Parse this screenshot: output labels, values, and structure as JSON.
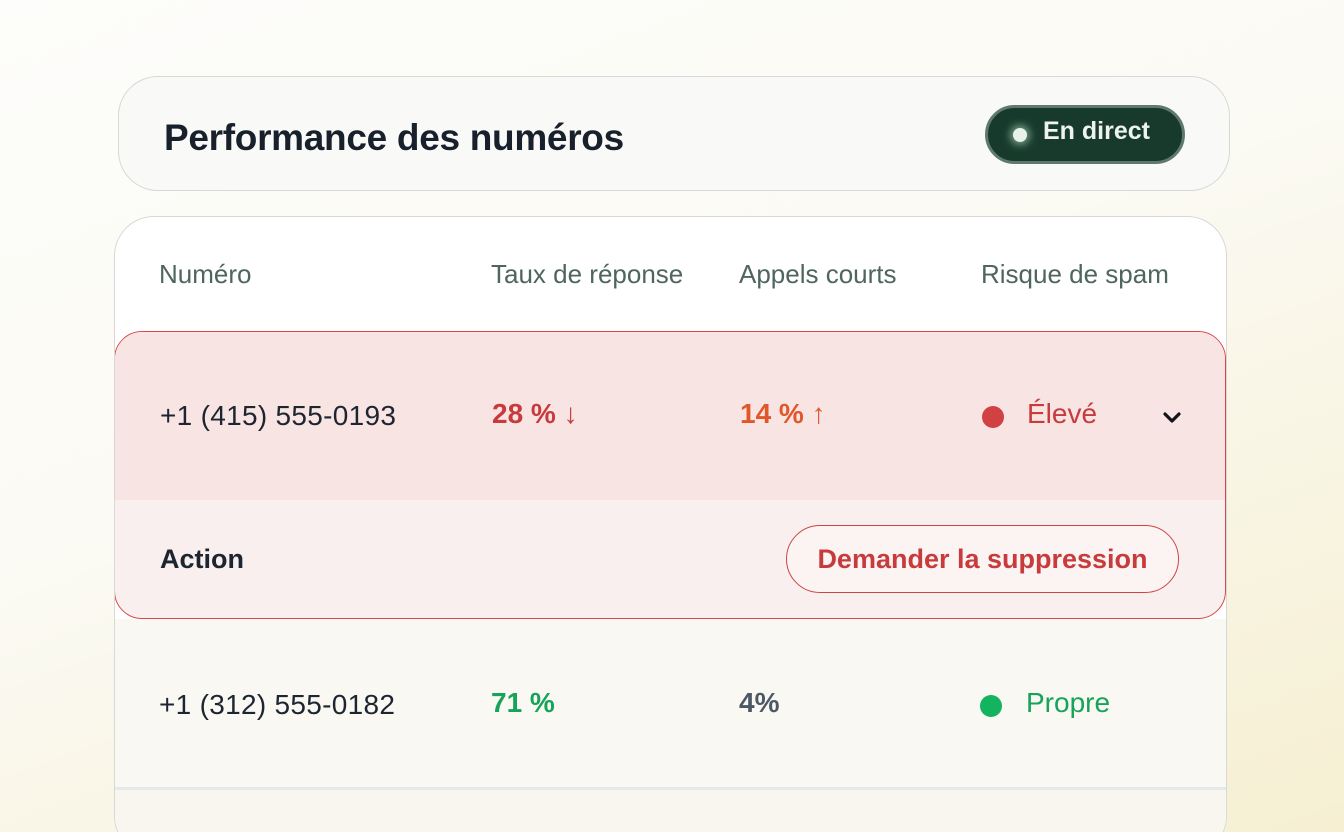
{
  "header": {
    "title": "Performance des numéros",
    "live_label": "En direct"
  },
  "table": {
    "columns": [
      "Numéro",
      "Taux de réponse",
      "Appels courts",
      "Risque de spam"
    ],
    "rows": [
      {
        "number": "+1 (415) 555-0193",
        "response_rate": "28 %",
        "response_trend": "↓",
        "short_calls": "14 %",
        "short_calls_trend": "↑",
        "spam_risk": "Élevé",
        "expanded": true,
        "action_label": "Action",
        "action_button": "Demander la suppression"
      },
      {
        "number": "+1 (312) 555-0182",
        "response_rate": "71 %",
        "short_calls": "4%",
        "spam_risk": "Propre"
      }
    ]
  },
  "colors": {
    "risk_high": "#d14042",
    "risk_clean": "#13b35f",
    "live_badge": "#173a2c",
    "short_calls_warning": "#e0572b"
  },
  "icons": {
    "response_trend": "arrow-down-icon",
    "short_calls_trend": "arrow-up-icon",
    "expand": "chevron-down-icon",
    "live": "live-dot-icon"
  }
}
